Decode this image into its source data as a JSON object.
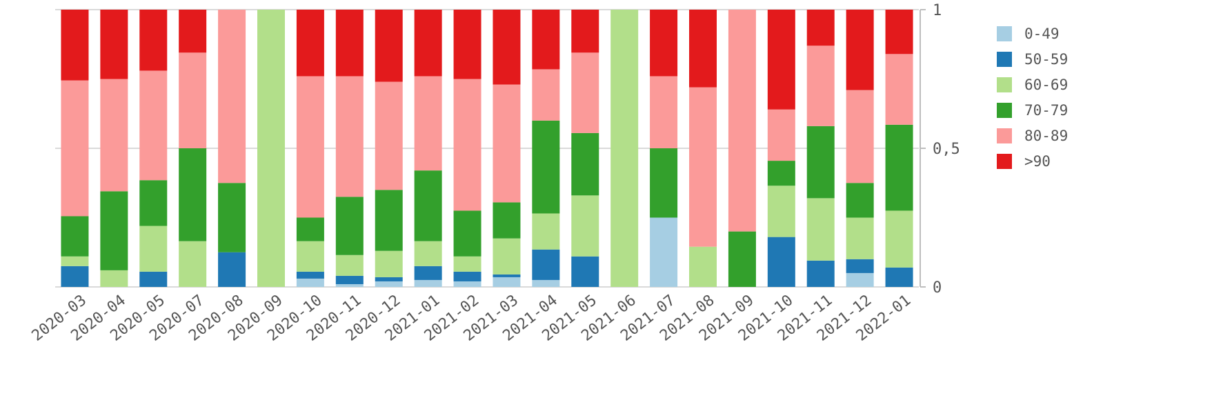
{
  "chart_data": {
    "type": "bar",
    "stacked": true,
    "normalized": true,
    "title": "",
    "xlabel": "",
    "ylabel": "",
    "ylim": [
      0,
      1
    ],
    "y_axis_position": "right",
    "y_ticks": [
      {
        "value": 0,
        "label": "0"
      },
      {
        "value": 0.5,
        "label": "0,5"
      },
      {
        "value": 1,
        "label": "1"
      }
    ],
    "grid": true,
    "legend_position": "right",
    "categories": [
      "2020-03",
      "2020-04",
      "2020-05",
      "2020-07",
      "2020-08",
      "2020-09",
      "2020-10",
      "2020-11",
      "2020-12",
      "2021-01",
      "2021-02",
      "2021-03",
      "2021-04",
      "2021-05",
      "2021-06",
      "2021-07",
      "2021-08",
      "2021-09",
      "2021-10",
      "2021-11",
      "2021-12",
      "2022-01"
    ],
    "series": [
      {
        "name": "0-49",
        "color": "#a6cee3",
        "values": [
          0,
          0,
          0,
          0,
          0,
          0,
          0.03,
          0.01,
          0.02,
          0.025,
          0.02,
          0.035,
          0.025,
          0,
          0,
          0.25,
          0,
          0,
          0,
          0,
          0.05,
          0
        ]
      },
      {
        "name": "50-59",
        "color": "#1f78b4",
        "values": [
          0.075,
          0,
          0.055,
          0,
          0.125,
          0,
          0.025,
          0.03,
          0.015,
          0.05,
          0.035,
          0.01,
          0.11,
          0.11,
          0,
          0,
          0,
          0,
          0.18,
          0.095,
          0.05,
          0.07
        ]
      },
      {
        "name": "60-69",
        "color": "#b2df8a",
        "values": [
          0.035,
          0.06,
          0.165,
          0.165,
          0,
          1.0,
          0.11,
          0.075,
          0.095,
          0.09,
          0.055,
          0.13,
          0.13,
          0.22,
          1.0,
          0,
          0.145,
          0,
          0.185,
          0.225,
          0.15,
          0.205
        ]
      },
      {
        "name": "70-79",
        "color": "#33a02c",
        "values": [
          0.145,
          0.285,
          0.165,
          0.335,
          0.25,
          0,
          0.085,
          0.21,
          0.22,
          0.255,
          0.165,
          0.13,
          0.335,
          0.225,
          0,
          0.25,
          0,
          0.2,
          0.09,
          0.26,
          0.125,
          0.31
        ]
      },
      {
        "name": "80-89",
        "color": "#fb9a99",
        "values": [
          0.49,
          0.405,
          0.395,
          0.345,
          0.625,
          0,
          0.51,
          0.435,
          0.39,
          0.34,
          0.475,
          0.425,
          0.185,
          0.29,
          0,
          0.26,
          0.575,
          0.8,
          0.185,
          0.29,
          0.335,
          0.255
        ]
      },
      {
        "name": ">90",
        "color": "#e31a1c",
        "values": [
          0.255,
          0.25,
          0.22,
          0.155,
          0,
          0,
          0.24,
          0.24,
          0.26,
          0.24,
          0.25,
          0.27,
          0.215,
          0.155,
          0,
          0.24,
          0.28,
          0,
          0.36,
          0.13,
          0.29,
          0.16
        ]
      }
    ]
  }
}
